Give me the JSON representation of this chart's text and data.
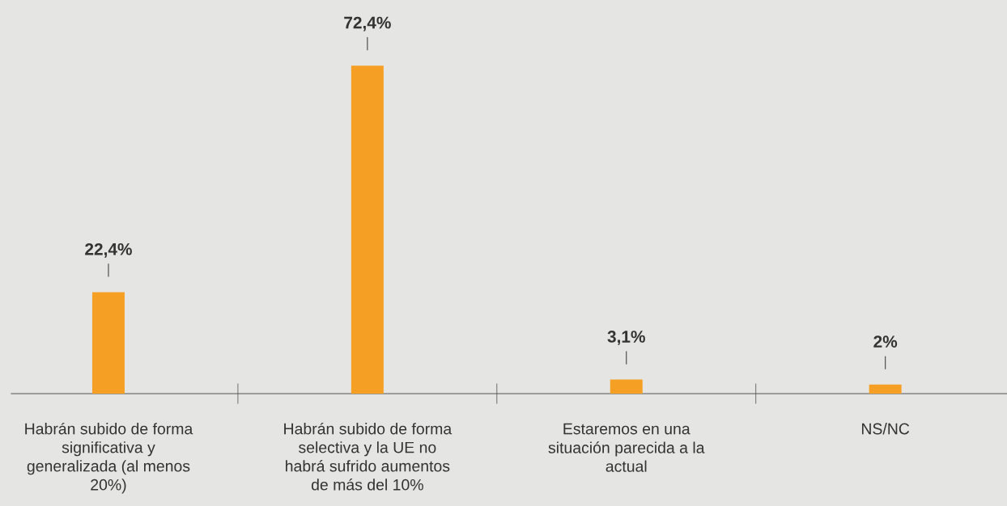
{
  "chart_data": {
    "type": "bar",
    "categories": [
      "Habrán subido de forma significativa y generalizada (al menos 20%)",
      "Habrán subido de forma selectiva y la UE no habrá sufrido aumentos de más del 10%",
      "Estaremos en una situación parecida a la actual",
      "NS/NC"
    ],
    "values": [
      22.4,
      72.4,
      3.1,
      2
    ],
    "value_labels": [
      "22,4%",
      "72,4%",
      "3,1%",
      "2%"
    ],
    "color": "#f5a024",
    "grid": false,
    "legend": false
  }
}
